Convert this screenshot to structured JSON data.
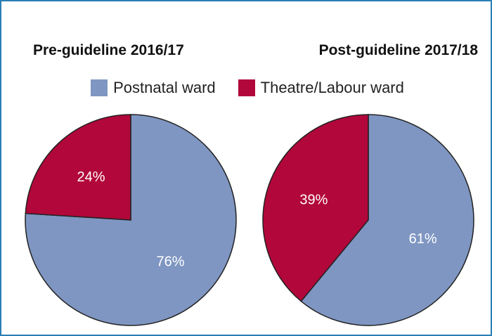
{
  "colors": {
    "postnatal": "#7f96c2",
    "theatre": "#b2073a",
    "stroke": "#222222",
    "frame": "#2a7fb5"
  },
  "legend": {
    "items": [
      {
        "label": "Postnatal ward",
        "color": "#7f96c2"
      },
      {
        "label": "Theatre/Labour ward",
        "color": "#b2073a"
      }
    ]
  },
  "chart_data": [
    {
      "type": "pie",
      "title": "Pre-guideline 2016/17",
      "categories": [
        "Postnatal ward",
        "Theatre/Labour ward"
      ],
      "values": [
        76,
        24
      ],
      "labels": [
        "76%",
        "24%"
      ]
    },
    {
      "type": "pie",
      "title": "Post-guideline 2017/18",
      "categories": [
        "Postnatal ward",
        "Theatre/Labour ward"
      ],
      "values": [
        61,
        39
      ],
      "labels": [
        "61%",
        "39%"
      ]
    }
  ]
}
